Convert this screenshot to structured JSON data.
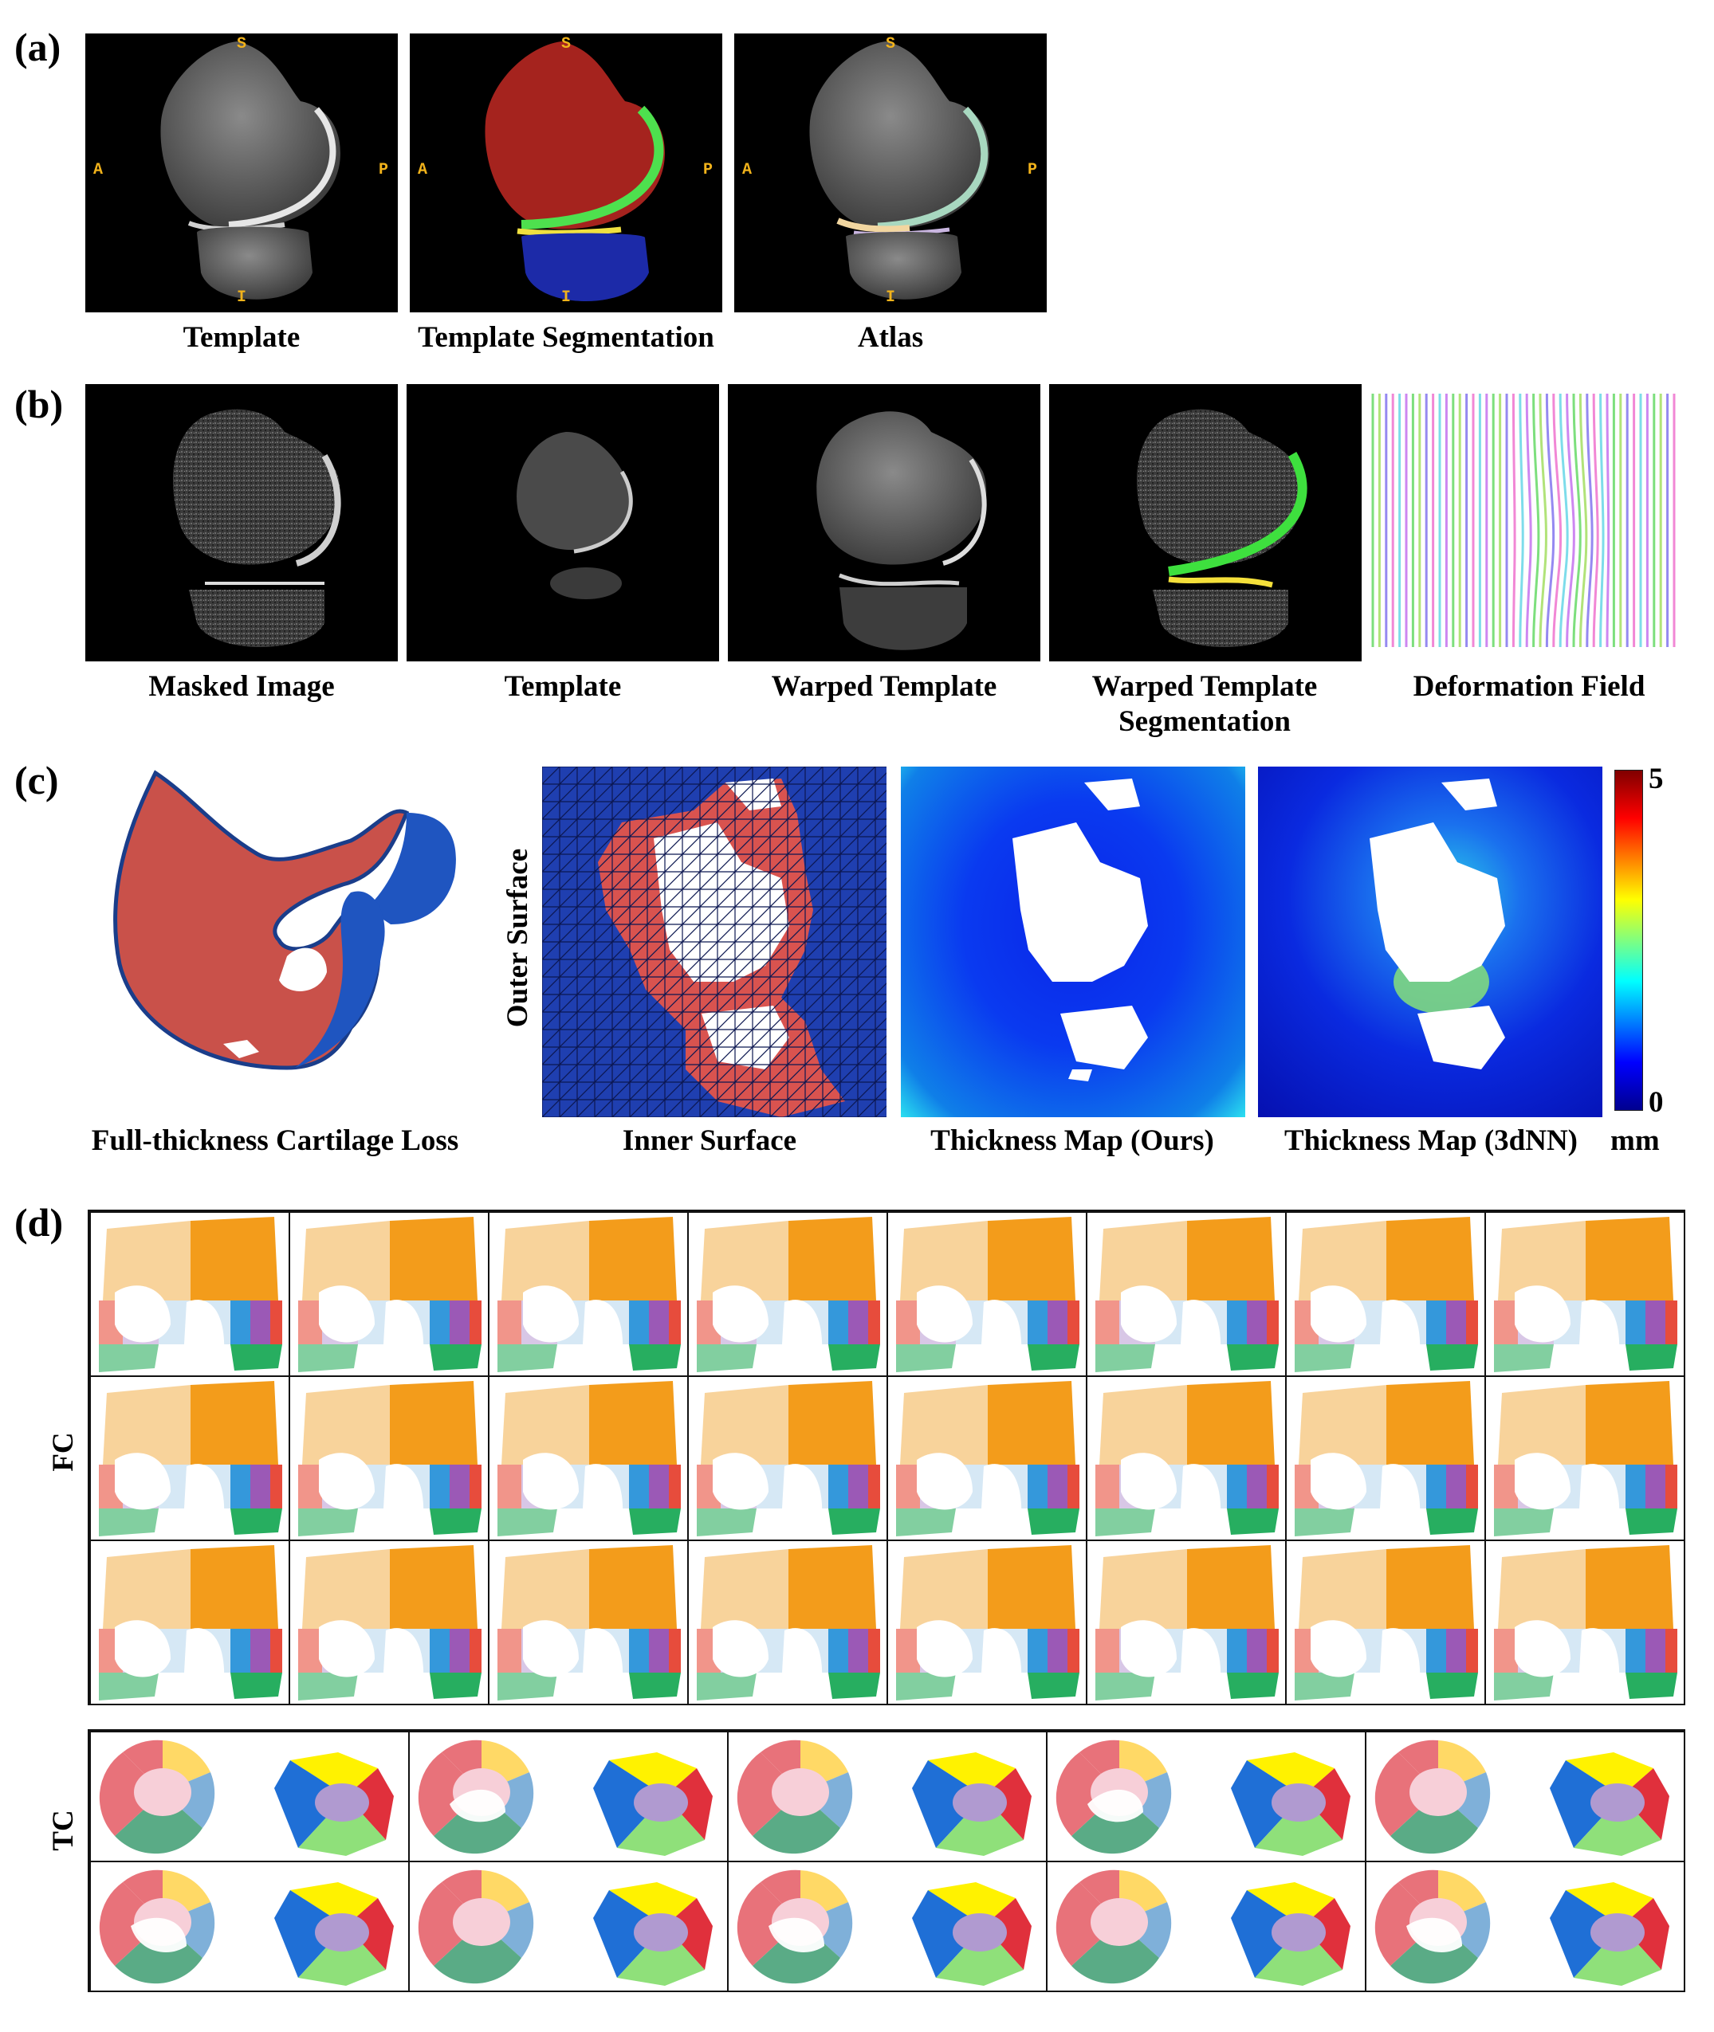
{
  "panels": {
    "a": {
      "label": "(a)",
      "orientation": {
        "s": "S",
        "i": "I",
        "a": "A",
        "p": "P"
      },
      "captions": [
        "Template",
        "Template Segmentation",
        "Atlas"
      ]
    },
    "b": {
      "label": "(b)",
      "captions": [
        "Masked Image",
        "Template",
        "Warped Template",
        "Warped Template Segmentation",
        "Deformation Field"
      ]
    },
    "c": {
      "label": "(c)",
      "captions": {
        "loss": "Full-thickness Cartilage Loss",
        "outer": "Outer Surface",
        "inner": "Inner Surface",
        "ours": "Thickness Map (Ours)",
        "nn": "Thickness Map (3dNN)"
      },
      "colorbar": {
        "max": "5",
        "min": "0",
        "unit": "mm"
      }
    },
    "d": {
      "label": "(d)",
      "fc_label": "FC",
      "tc_label": "TC"
    }
  },
  "colors": {
    "orientation_text": "#f2b31b",
    "femur_seg": "#a5231e",
    "tibia_seg": "#1c2aa8",
    "cartilage_green": "#4ee04e",
    "cartilage_yellow": "#f0e040",
    "mesh_red": "#d9534f",
    "mesh_blue": "#1f3fb0",
    "fc_regions": [
      "#f8d39b",
      "#f39c1b",
      "#f1958a",
      "#d8c7e6",
      "#d6e8f5",
      "#3498db",
      "#9b59b6",
      "#e74c3c",
      "#82cfa0",
      "#27ae60"
    ],
    "tc_regions": [
      "#ffd966",
      "#e8727a",
      "#7fb0d9",
      "#5aab86",
      "#f7cfd8",
      "#fff200",
      "#1f6fd6",
      "#e0303c",
      "#8fe07a",
      "#b09ad0"
    ]
  }
}
